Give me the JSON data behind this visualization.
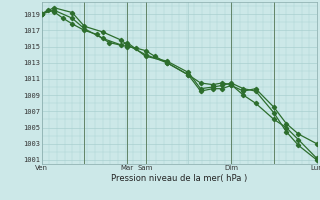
{
  "title": "",
  "xlabel": "Pression niveau de la mer( hPa )",
  "ylabel": "",
  "background_color": "#cce8e8",
  "grid_color": "#aad0d0",
  "line_color": "#2d6e2d",
  "ylim": [
    1000.5,
    1020.5
  ],
  "yticks": [
    1001,
    1003,
    1005,
    1007,
    1009,
    1011,
    1013,
    1015,
    1017,
    1019
  ],
  "xtick_labels": [
    "Ven",
    "",
    "Mar",
    "Sam",
    "",
    "Dim",
    "",
    "Lun"
  ],
  "xtick_positions": [
    0,
    28,
    56,
    68,
    96,
    124,
    152,
    180
  ],
  "total_x": 180,
  "series1_x": [
    0,
    4,
    8,
    14,
    20,
    28,
    36,
    44,
    56,
    62,
    68,
    74,
    82,
    96,
    104,
    112,
    118,
    124,
    132,
    140,
    152,
    160,
    168,
    180
  ],
  "series1_y": [
    1019,
    1019.5,
    1019.3,
    1018.5,
    1017.8,
    1017.0,
    1016.5,
    1015.5,
    1015.0,
    1014.8,
    1014.5,
    1013.8,
    1013.0,
    1011.5,
    1010.5,
    1010.3,
    1010.5,
    1010.3,
    1009.0,
    1008.0,
    1006.0,
    1005.0,
    1003.5,
    1001.2
  ],
  "series2_x": [
    0,
    8,
    20,
    28,
    40,
    52,
    56,
    68,
    82,
    96,
    104,
    112,
    118,
    124,
    132,
    140,
    152,
    160,
    168,
    180
  ],
  "series2_y": [
    1019,
    1019.8,
    1019.2,
    1017.5,
    1016.8,
    1015.8,
    1015.2,
    1014.0,
    1013.0,
    1011.5,
    1009.5,
    1009.8,
    1009.8,
    1010.2,
    1009.5,
    1009.8,
    1007.5,
    1005.5,
    1004.2,
    1003.0
  ],
  "series3_x": [
    0,
    8,
    20,
    28,
    40,
    52,
    56,
    68,
    82,
    96,
    104,
    112,
    118,
    124,
    132,
    140,
    152,
    160,
    168,
    180
  ],
  "series3_y": [
    1019,
    1019.5,
    1018.5,
    1017.2,
    1016.0,
    1015.2,
    1015.5,
    1013.8,
    1013.2,
    1011.8,
    1009.8,
    1010.0,
    1010.2,
    1010.5,
    1009.8,
    1009.5,
    1006.8,
    1004.5,
    1002.8,
    1001.0
  ],
  "vlines_x": [
    28,
    56,
    68,
    124,
    152,
    180
  ],
  "marker": "D",
  "marker_size": 2.2,
  "linewidth": 0.9
}
